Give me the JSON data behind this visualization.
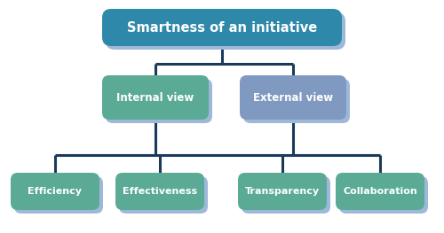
{
  "title": "Smartness of an initiative",
  "level2_left": "Internal view",
  "level2_right": "External view",
  "level3": [
    "Efficiency",
    "Effectiveness",
    "Transparency",
    "Collaboration"
  ],
  "bg_color": "#ffffff",
  "line_color": "#1a3a5c",
  "shadow_color": "#9db8d8",
  "box_color_top": "#2e88aa",
  "box_color_mid_left": "#5aaa96",
  "box_color_mid_right": "#8099c0",
  "box_color_bottom": "#5aaa96",
  "text_color": "#ffffff",
  "line_width": 2.2,
  "font_size_top": 10.5,
  "font_size_mid": 8.5,
  "font_size_bot": 8.0
}
